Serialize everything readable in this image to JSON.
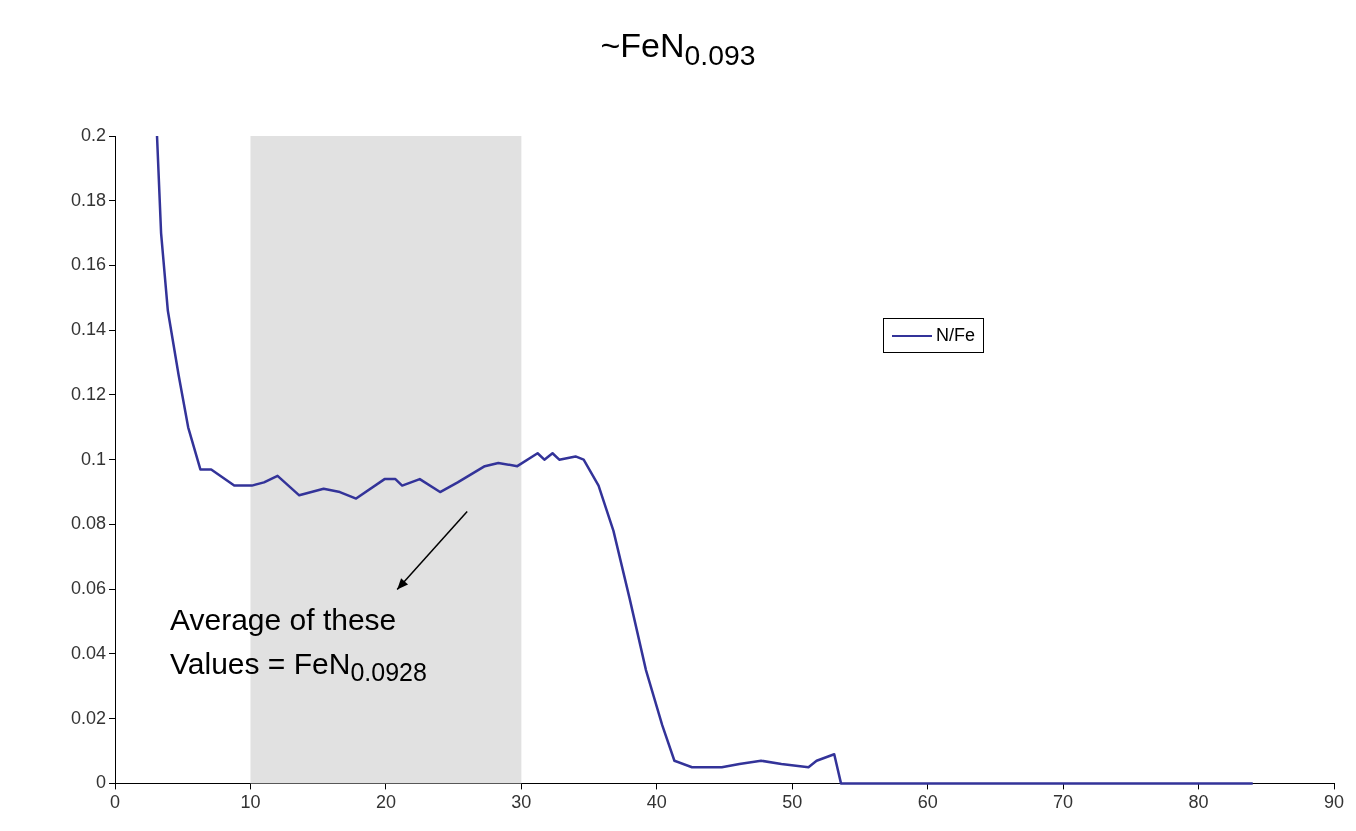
{
  "chart_data": {
    "type": "line",
    "title": "~FeN$_{0.093}$",
    "annotations": [
      "Average of these Values = FeN$_{0.0928}$"
    ],
    "series": [
      {
        "name": "N/Fe",
        "color": "#333399",
        "x": [
          3.1,
          3.4,
          3.9,
          4.7,
          5.4,
          6.3,
          7.1,
          8.8,
          10.1,
          11.0,
          12.0,
          13.6,
          15.4,
          16.6,
          17.8,
          19.9,
          20.7,
          21.2,
          22.5,
          24.0,
          25.3,
          27.3,
          28.3,
          29.7,
          31.2,
          31.7,
          32.3,
          32.8,
          34.0,
          34.6,
          35.7,
          36.8,
          38.0,
          39.2,
          40.4,
          41.3,
          42.6,
          44.1,
          44.8,
          46.1,
          47.7,
          49.2,
          51.2,
          51.8,
          53.1,
          53.6,
          84
        ],
        "values": [
          0.2,
          0.17,
          0.146,
          0.126,
          0.11,
          0.097,
          0.097,
          0.092,
          0.092,
          0.093,
          0.095,
          0.089,
          0.091,
          0.09,
          0.088,
          0.094,
          0.094,
          0.092,
          0.094,
          0.09,
          0.093,
          0.098,
          0.099,
          0.098,
          0.102,
          0.1,
          0.102,
          0.1,
          0.101,
          0.1,
          0.092,
          0.078,
          0.057,
          0.035,
          0.018,
          0.007,
          0.005,
          0.005,
          0.005,
          0.006,
          0.007,
          0.006,
          0.005,
          0.007,
          0.009,
          0,
          0
        ]
      }
    ],
    "bands": [
      {
        "axis": "x",
        "from": 10,
        "to": 30,
        "color": "#d9d9d9"
      }
    ],
    "xlim": [
      0,
      90
    ],
    "xticks": [
      0,
      10,
      20,
      30,
      40,
      50,
      60,
      70,
      80,
      90
    ],
    "ylim": [
      0,
      0.2
    ],
    "yticks": [
      0,
      0.02,
      0.04,
      0.06,
      0.08,
      0.1,
      0.12,
      0.14,
      0.16,
      0.18,
      0.2
    ],
    "grid": false,
    "legend": "right",
    "marker": "none",
    "line_style": "solid"
  }
}
